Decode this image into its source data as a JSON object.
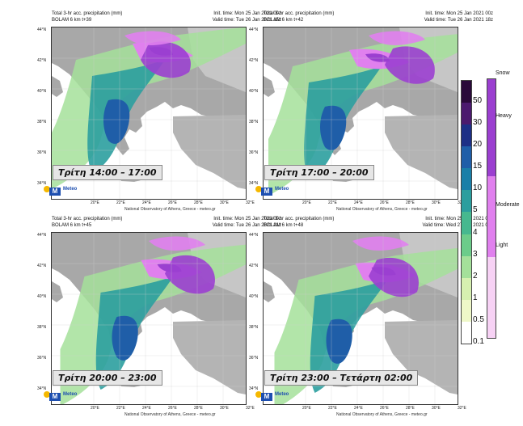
{
  "panels": [
    {
      "title1": "Total 3-hr acc. precipitation (mm)",
      "title2": "BOLAM 6 km t+39",
      "init": "Init. time: Mon 25 Jan 2021 00z",
      "valid": "Valid time: Tue 26 Jan 2021 15z",
      "time_label": "Τρίτη 14:00 – 17:00"
    },
    {
      "title1": "Total 3-hr acc. precipitation (mm)",
      "title2": "BOLAM 6 km t+42",
      "init": "Init. time: Mon 25 Jan 2021 00z",
      "valid": "Valid time: Tue 26 Jan 2021 18z",
      "time_label": "Τρίτη 17:00 – 20:00"
    },
    {
      "title1": "Total 3-hr acc. precipitation (mm)",
      "title2": "BOLAM 6 km t+45",
      "init": "Init. time: Mon 25 Jan 2021 00z",
      "valid": "Valid time: Tue 26 Jan 2021 21z",
      "time_label": "Τρίτη 20:00 – 23:00"
    },
    {
      "title1": "Total 3-hr acc. precipitation (mm)",
      "title2": "BOLAM 6 km t+48",
      "init": "Init. time: Mon 25 Jan 2021 00z",
      "valid": "Valid time: Wed 27 Jan 2021 00z",
      "time_label": "Τρίτη 23:00 –  Τετάρτη 02:00"
    }
  ],
  "lat_labels": [
    "44°N",
    "42°N",
    "40°N",
    "38°N",
    "36°N",
    "34°N"
  ],
  "lon_labels": [
    "20°E",
    "22°E",
    "24°E",
    "26°E",
    "28°E",
    "30°E",
    "32°E"
  ],
  "credit": "National Observatory of Athens, Greece - meteo.gr",
  "logo": {
    "name": "Meteo",
    "tagline": "Ideas on the Weather"
  },
  "precip_legend": {
    "levels": [
      "50",
      "30",
      "20",
      "15",
      "10",
      "5",
      "4",
      "3",
      "2",
      "1",
      "0.5",
      "0.1"
    ],
    "colors": [
      "#2a0a3a",
      "#4b1a6e",
      "#1d2f86",
      "#1f5ea8",
      "#1a7fa8",
      "#2b9e9e",
      "#46b88f",
      "#6ccc8a",
      "#a4e09a",
      "#d6f0b0",
      "#eef7c8",
      "#ffffff"
    ]
  },
  "snow_legend": {
    "title": "Snow",
    "levels": [
      "Heavy",
      "Moderate",
      "Light"
    ],
    "colors": [
      "#9b3fd0",
      "#e080ee",
      "#f7d2f5"
    ]
  }
}
